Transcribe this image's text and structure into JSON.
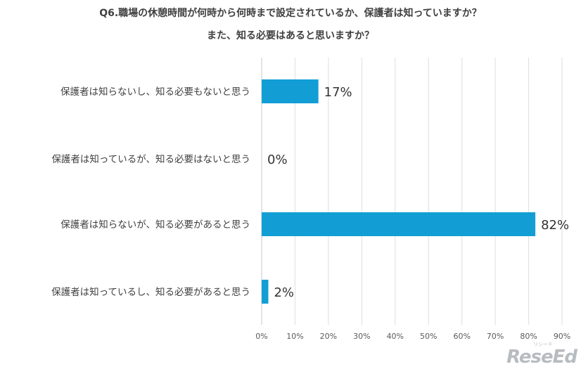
{
  "chart_data": {
    "type": "bar",
    "orientation": "horizontal",
    "title_line1": "Q6.職場の休憩時間が何時から何時まで設定されているか、保護者は知っていますか？",
    "title_line2": "また、知る必要はあると思いますか？",
    "categories": [
      "保護者は知らないし、知る必要もないと思う",
      "保護者は知っているが、知る必要はないと思う",
      "保護者は知らないが、知る必要があると思う",
      "保護者は知っているし、知る必要があると思う"
    ],
    "values": [
      17,
      0,
      82,
      2
    ],
    "value_labels": [
      "17%",
      "0%",
      "82%",
      "2%"
    ],
    "xlim": [
      0,
      90
    ],
    "x_ticks": [
      "0%",
      "10%",
      "20%",
      "30%",
      "40%",
      "50%",
      "60%",
      "70%",
      "80%",
      "90%"
    ],
    "grid": true,
    "bar_color": "#129ed5"
  },
  "logo": {
    "text": "ReseEd",
    "sub": "リシード"
  }
}
